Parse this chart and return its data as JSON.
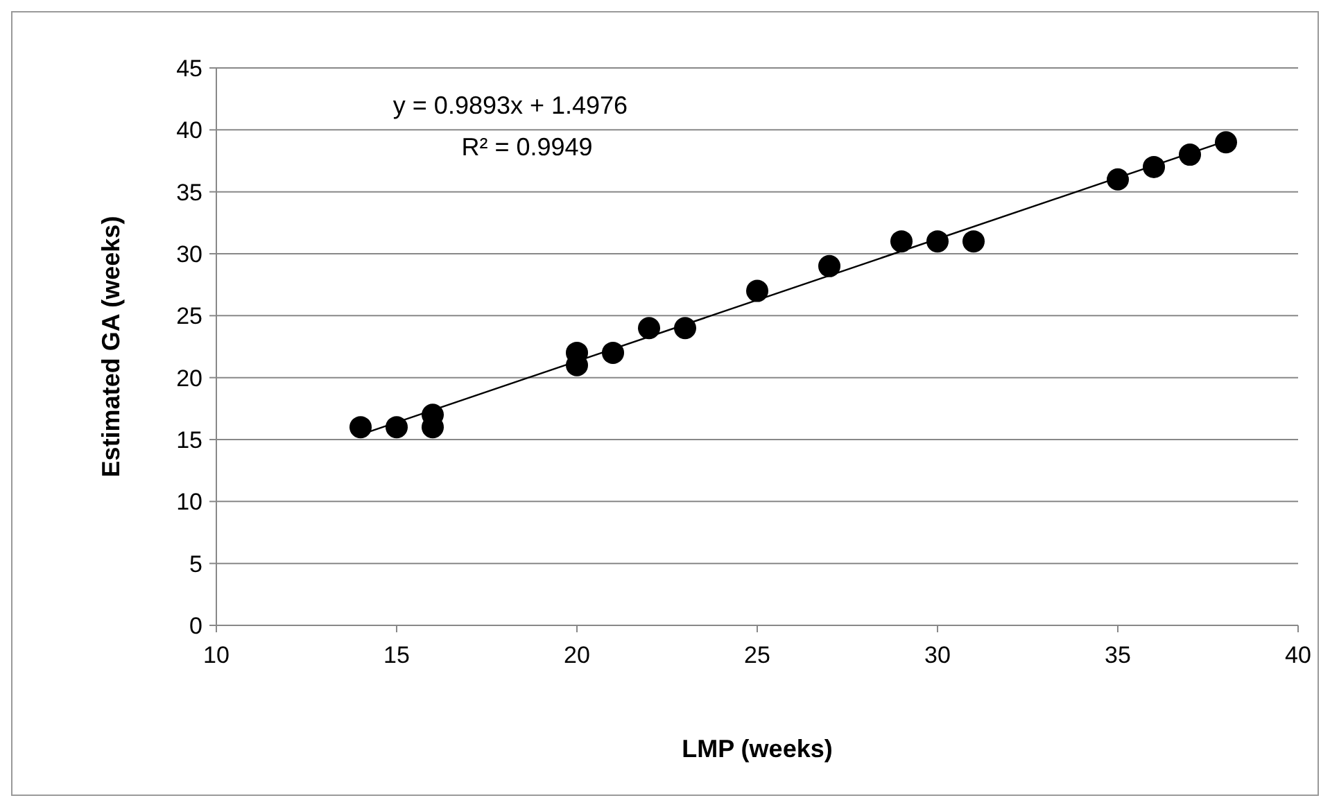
{
  "chart_data": {
    "type": "scatter",
    "xlabel": "LMP (weeks)",
    "ylabel": "Estimated GA (weeks)",
    "annotations": [
      "y = 0.9893x + 1.4976",
      "R² = 0.9949"
    ],
    "xlim": [
      10,
      40
    ],
    "xticks": [
      10,
      15,
      20,
      25,
      30,
      35,
      40
    ],
    "ylim": [
      0,
      45
    ],
    "yticks": [
      0,
      5,
      10,
      15,
      20,
      25,
      30,
      35,
      40,
      45
    ],
    "grid": "y",
    "marker": "circle",
    "series": [
      {
        "color": "#000000",
        "x": [
          14,
          15,
          16,
          16,
          20,
          20,
          21,
          22,
          23,
          25,
          27,
          29,
          30,
          31,
          35,
          36,
          37,
          38
        ],
        "values": [
          16,
          16,
          16,
          17,
          21,
          22,
          22,
          24,
          24,
          27,
          29,
          31,
          31,
          31,
          36,
          37,
          38,
          39
        ]
      },
      {
        "type": "line",
        "color": "#000000",
        "line_style": "solid",
        "marker": "none",
        "x": [
          14,
          38
        ],
        "values": [
          15.4,
          39.1
        ]
      }
    ]
  }
}
